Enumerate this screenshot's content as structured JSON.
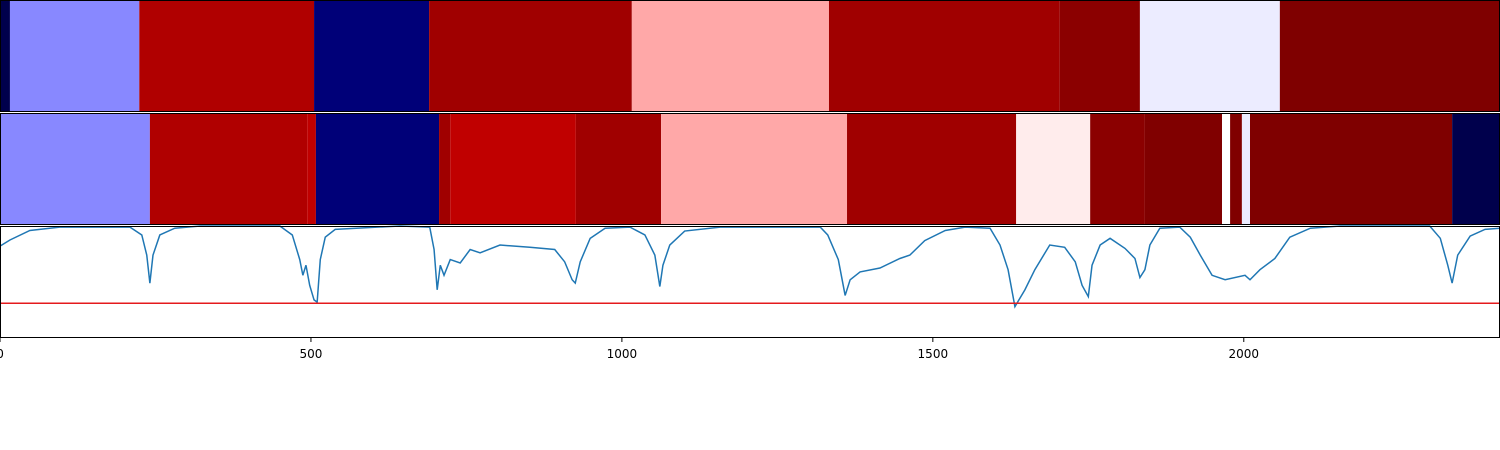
{
  "chart_data": [
    {
      "type": "segments",
      "xlim": [
        0,
        2412
      ],
      "segments": [
        {
          "start": 0,
          "end": 16,
          "color": "#00004c"
        },
        {
          "start": 16,
          "end": 224,
          "color": "#8888ff"
        },
        {
          "start": 224,
          "end": 505,
          "color": "#b00000"
        },
        {
          "start": 505,
          "end": 690,
          "color": "#000078"
        },
        {
          "start": 690,
          "end": 1016,
          "color": "#a00000"
        },
        {
          "start": 1016,
          "end": 1333,
          "color": "#ffa8a8"
        },
        {
          "start": 1333,
          "end": 1704,
          "color": "#a00000"
        },
        {
          "start": 1704,
          "end": 1833,
          "color": "#8b0000"
        },
        {
          "start": 1833,
          "end": 2058,
          "color": "#ececff"
        },
        {
          "start": 2058,
          "end": 2412,
          "color": "#7f0000"
        }
      ]
    },
    {
      "type": "segments",
      "xlim": [
        0,
        2412
      ],
      "segments": [
        {
          "start": 0,
          "end": 241,
          "color": "#8888ff"
        },
        {
          "start": 241,
          "end": 494,
          "color": "#b00000"
        },
        {
          "start": 494,
          "end": 508,
          "color": "#c00000"
        },
        {
          "start": 508,
          "end": 706,
          "color": "#000078"
        },
        {
          "start": 706,
          "end": 724,
          "color": "#a00000"
        },
        {
          "start": 724,
          "end": 926,
          "color": "#c00000"
        },
        {
          "start": 926,
          "end": 1063,
          "color": "#a00000"
        },
        {
          "start": 1063,
          "end": 1362,
          "color": "#ffa8a8"
        },
        {
          "start": 1362,
          "end": 1634,
          "color": "#a00000"
        },
        {
          "start": 1634,
          "end": 1753,
          "color": "#ffecec"
        },
        {
          "start": 1753,
          "end": 1841,
          "color": "#8b0000"
        },
        {
          "start": 1841,
          "end": 1965,
          "color": "#800000"
        },
        {
          "start": 1965,
          "end": 1978,
          "color": "#ffffff"
        },
        {
          "start": 1978,
          "end": 1997,
          "color": "#800000"
        },
        {
          "start": 1997,
          "end": 2010,
          "color": "#ececff"
        },
        {
          "start": 2010,
          "end": 2335,
          "color": "#7f0000"
        },
        {
          "start": 2335,
          "end": 2412,
          "color": "#00004c"
        }
      ]
    },
    {
      "type": "line",
      "xlim": [
        0,
        2412
      ],
      "ylim": [
        0,
        1
      ],
      "xticks": [
        0,
        500,
        1000,
        1500,
        2000
      ],
      "threshold": 0.31,
      "threshold_color": "#e41a1c",
      "series": [
        {
          "color": "#1f77b4",
          "x": [
            0,
            16,
            48,
            96,
            209,
            228,
            236,
            241,
            246,
            257,
            281,
            322,
            450,
            470,
            482,
            487,
            492,
            498,
            505,
            510,
            515,
            523,
            539,
            643,
            691,
            698,
            703,
            708,
            714,
            724,
            740,
            756,
            772,
            804,
            852,
            892,
            908,
            920,
            925,
            933,
            949,
            973,
            1013,
            1037,
            1053,
            1061,
            1066,
            1077,
            1101,
            1158,
            1319,
            1331,
            1348,
            1359,
            1367,
            1383,
            1415,
            1447,
            1463,
            1487,
            1520,
            1552,
            1592,
            1608,
            1621,
            1632,
            1648,
            1664,
            1688,
            1712,
            1729,
            1740,
            1750,
            1756,
            1769,
            1785,
            1809,
            1825,
            1833,
            1841,
            1849,
            1865,
            1897,
            1914,
            1930,
            1949,
            1970,
            2002,
            2010,
            2026,
            2050,
            2074,
            2107,
            2155,
            2299,
            2316,
            2328,
            2335,
            2344,
            2364,
            2388,
            2412
          ],
          "values": [
            0.82,
            0.875,
            0.96,
            0.99,
            0.99,
            0.92,
            0.74,
            0.49,
            0.74,
            0.92,
            0.98,
            1.0,
            1.0,
            0.92,
            0.7,
            0.56,
            0.65,
            0.47,
            0.34,
            0.32,
            0.7,
            0.9,
            0.97,
            1.0,
            0.99,
            0.79,
            0.43,
            0.65,
            0.56,
            0.7,
            0.67,
            0.79,
            0.76,
            0.83,
            0.81,
            0.79,
            0.68,
            0.52,
            0.49,
            0.68,
            0.89,
            0.98,
            0.99,
            0.92,
            0.74,
            0.46,
            0.65,
            0.83,
            0.955,
            0.99,
            0.99,
            0.92,
            0.7,
            0.38,
            0.52,
            0.59,
            0.625,
            0.71,
            0.74,
            0.87,
            0.96,
            0.99,
            0.98,
            0.83,
            0.61,
            0.28,
            0.43,
            0.61,
            0.83,
            0.81,
            0.68,
            0.47,
            0.37,
            0.65,
            0.83,
            0.89,
            0.8,
            0.71,
            0.54,
            0.61,
            0.83,
            0.98,
            0.99,
            0.9,
            0.74,
            0.56,
            0.52,
            0.56,
            0.52,
            0.61,
            0.71,
            0.9,
            0.98,
            1.0,
            1.0,
            0.89,
            0.65,
            0.49,
            0.74,
            0.91,
            0.97,
            0.98
          ]
        }
      ]
    }
  ]
}
